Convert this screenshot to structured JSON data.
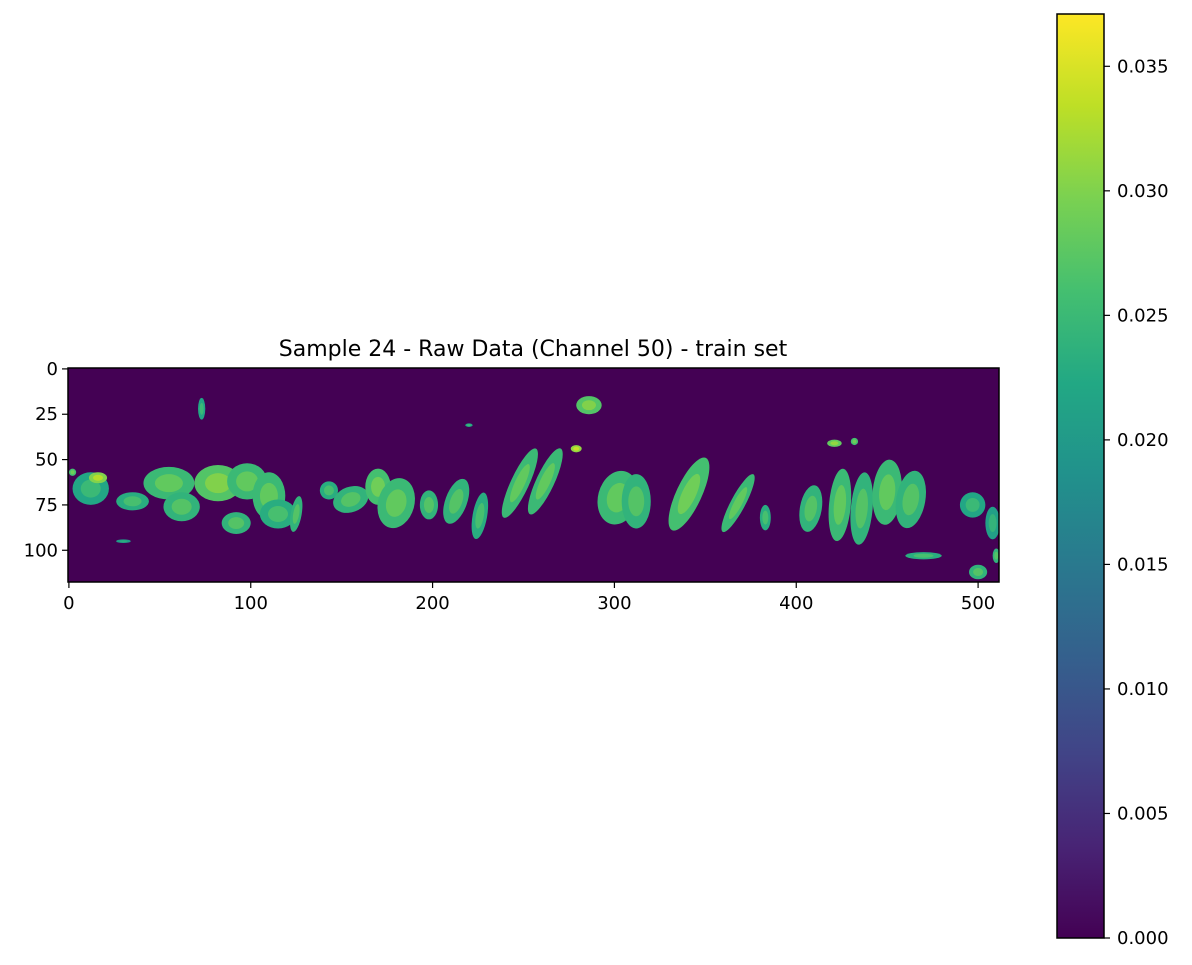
{
  "chart_data": {
    "type": "heatmap",
    "title": "Sample 24 - Raw Data (Channel 50) - train set",
    "xlabel": "",
    "ylabel": "",
    "colormap": "viridis",
    "grid": false,
    "image_extent": {
      "x": [
        0,
        512
      ],
      "y": [
        118,
        0
      ]
    },
    "xlim": [
      -0.5,
      511.5
    ],
    "ylim": [
      117.5,
      -0.5
    ],
    "x_ticks": [
      0,
      100,
      200,
      300,
      400,
      500
    ],
    "x_tick_labels": [
      "0",
      "100",
      "200",
      "300",
      "400",
      "500"
    ],
    "y_ticks": [
      0,
      25,
      50,
      75,
      100
    ],
    "y_tick_labels": [
      "0",
      "25",
      "50",
      "75",
      "100"
    ],
    "colorbar": {
      "range": [
        0.0,
        0.0371
      ],
      "ticks": [
        0.0,
        0.005,
        0.01,
        0.015,
        0.02,
        0.025,
        0.03,
        0.035
      ],
      "tick_labels": [
        "0.000",
        "0.005",
        "0.010",
        "0.015",
        "0.020",
        "0.025",
        "0.030",
        "0.035"
      ]
    },
    "background_value": 0.0,
    "value_range_nonzero": [
      0.018,
      0.037
    ],
    "blobs": [
      {
        "cx": 12,
        "cy": 66,
        "rx": 10,
        "ry": 9,
        "rot": 0,
        "v": 0.024
      },
      {
        "cx": 16,
        "cy": 60,
        "rx": 5,
        "ry": 3,
        "rot": 0,
        "v": 0.032
      },
      {
        "cx": 35,
        "cy": 73,
        "rx": 9,
        "ry": 5,
        "rot": 0,
        "v": 0.025
      },
      {
        "cx": 55,
        "cy": 63,
        "rx": 14,
        "ry": 9,
        "rot": 0,
        "v": 0.027
      },
      {
        "cx": 62,
        "cy": 76,
        "rx": 10,
        "ry": 8,
        "rot": 0,
        "v": 0.026
      },
      {
        "cx": 82,
        "cy": 63,
        "rx": 13,
        "ry": 10,
        "rot": 0,
        "v": 0.029
      },
      {
        "cx": 98,
        "cy": 62,
        "rx": 11,
        "ry": 10,
        "rot": 0,
        "v": 0.027
      },
      {
        "cx": 110,
        "cy": 70,
        "rx": 9,
        "ry": 13,
        "rot": 0,
        "v": 0.027
      },
      {
        "cx": 92,
        "cy": 85,
        "rx": 8,
        "ry": 6,
        "rot": 0,
        "v": 0.026
      },
      {
        "cx": 115,
        "cy": 80,
        "rx": 10,
        "ry": 8,
        "rot": 0,
        "v": 0.025
      },
      {
        "cx": 125,
        "cy": 80,
        "rx": 3,
        "ry": 10,
        "rot": 10,
        "v": 0.026
      },
      {
        "cx": 143,
        "cy": 67,
        "rx": 5,
        "ry": 5,
        "rot": 0,
        "v": 0.025
      },
      {
        "cx": 155,
        "cy": 72,
        "rx": 10,
        "ry": 7,
        "rot": -20,
        "v": 0.026
      },
      {
        "cx": 170,
        "cy": 65,
        "rx": 7,
        "ry": 10,
        "rot": 0,
        "v": 0.028
      },
      {
        "cx": 180,
        "cy": 74,
        "rx": 10,
        "ry": 14,
        "rot": 15,
        "v": 0.027
      },
      {
        "cx": 198,
        "cy": 75,
        "rx": 5,
        "ry": 8,
        "rot": 0,
        "v": 0.026
      },
      {
        "cx": 213,
        "cy": 73,
        "rx": 6,
        "ry": 13,
        "rot": 20,
        "v": 0.026
      },
      {
        "cx": 226,
        "cy": 81,
        "rx": 4,
        "ry": 13,
        "rot": 10,
        "v": 0.025
      },
      {
        "cx": 248,
        "cy": 63,
        "rx": 5,
        "ry": 21,
        "rot": 25,
        "v": 0.027
      },
      {
        "cx": 262,
        "cy": 62,
        "rx": 5,
        "ry": 20,
        "rot": 25,
        "v": 0.027
      },
      {
        "cx": 286,
        "cy": 20,
        "rx": 7,
        "ry": 5,
        "rot": 0,
        "v": 0.029
      },
      {
        "cx": 302,
        "cy": 71,
        "rx": 11,
        "ry": 15,
        "rot": 15,
        "v": 0.027
      },
      {
        "cx": 312,
        "cy": 73,
        "rx": 8,
        "ry": 15,
        "rot": 0,
        "v": 0.026
      },
      {
        "cx": 341,
        "cy": 69,
        "rx": 7,
        "ry": 22,
        "rot": 25,
        "v": 0.028
      },
      {
        "cx": 368,
        "cy": 74,
        "rx": 4,
        "ry": 18,
        "rot": 28,
        "v": 0.027
      },
      {
        "cx": 383,
        "cy": 82,
        "rx": 3,
        "ry": 7,
        "rot": 0,
        "v": 0.025
      },
      {
        "cx": 408,
        "cy": 77,
        "rx": 6,
        "ry": 13,
        "rot": 10,
        "v": 0.026
      },
      {
        "cx": 424,
        "cy": 75,
        "rx": 6,
        "ry": 20,
        "rot": 5,
        "v": 0.027
      },
      {
        "cx": 436,
        "cy": 77,
        "rx": 6,
        "ry": 20,
        "rot": 5,
        "v": 0.026
      },
      {
        "cx": 450,
        "cy": 68,
        "rx": 8,
        "ry": 18,
        "rot": 5,
        "v": 0.027
      },
      {
        "cx": 463,
        "cy": 72,
        "rx": 8,
        "ry": 16,
        "rot": 10,
        "v": 0.026
      },
      {
        "cx": 497,
        "cy": 75,
        "rx": 7,
        "ry": 7,
        "rot": 0,
        "v": 0.024
      },
      {
        "cx": 508,
        "cy": 85,
        "rx": 4,
        "ry": 9,
        "rot": 0,
        "v": 0.023
      },
      {
        "cx": 73,
        "cy": 22,
        "rx": 2,
        "ry": 6,
        "rot": 0,
        "v": 0.024
      },
      {
        "cx": 279,
        "cy": 44,
        "rx": 3,
        "ry": 2,
        "rot": 0,
        "v": 0.033
      },
      {
        "cx": 421,
        "cy": 41,
        "rx": 4,
        "ry": 2,
        "rot": 0,
        "v": 0.03
      },
      {
        "cx": 432,
        "cy": 40,
        "rx": 2,
        "ry": 2,
        "rot": 0,
        "v": 0.028
      },
      {
        "cx": 500,
        "cy": 112,
        "rx": 5,
        "ry": 4,
        "rot": 0,
        "v": 0.026
      },
      {
        "cx": 510,
        "cy": 103,
        "rx": 2,
        "ry": 4,
        "rot": 0,
        "v": 0.026
      },
      {
        "cx": 470,
        "cy": 103,
        "rx": 10,
        "ry": 2,
        "rot": 0,
        "v": 0.025
      },
      {
        "cx": 30,
        "cy": 95,
        "rx": 4,
        "ry": 1,
        "rot": 0,
        "v": 0.022
      },
      {
        "cx": 220,
        "cy": 31,
        "rx": 2,
        "ry": 1,
        "rot": 0,
        "v": 0.024
      },
      {
        "cx": 2,
        "cy": 57,
        "rx": 2,
        "ry": 2,
        "rot": 0,
        "v": 0.028
      }
    ]
  }
}
